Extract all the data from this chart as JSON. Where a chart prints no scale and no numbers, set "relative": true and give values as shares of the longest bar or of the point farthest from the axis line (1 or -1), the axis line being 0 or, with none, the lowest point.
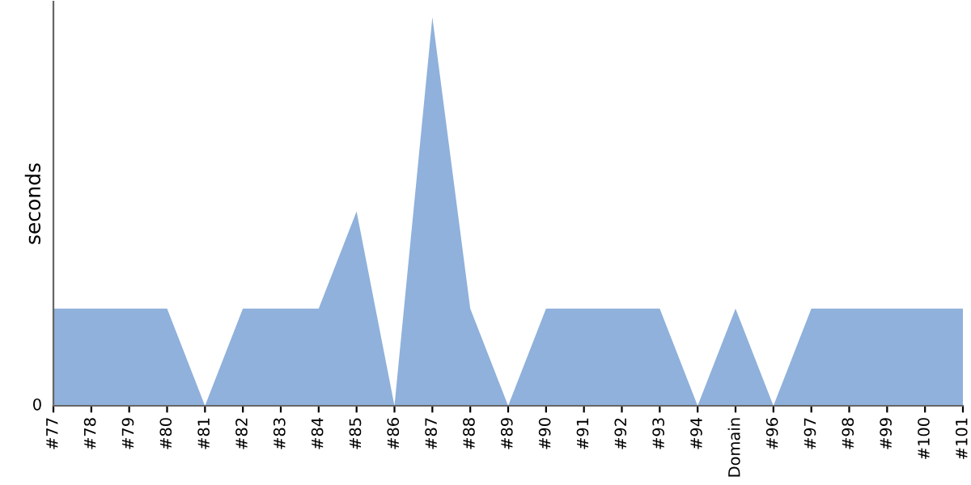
{
  "chart_data": {
    "type": "area",
    "relative": true,
    "ylabel": "seconds",
    "annotations": [
      "0"
    ],
    "categories": [
      "#77",
      "#78",
      "#79",
      "#80",
      "#81",
      "#82",
      "#83",
      "#84",
      "#85",
      "#86",
      "#87",
      "#88",
      "#89",
      "#90",
      "#91",
      "#92",
      "#93",
      "#94",
      "Domain",
      "#96",
      "#97",
      "#98",
      "#99",
      "#100",
      "#101"
    ],
    "series": [
      {
        "color": "#8fb1db",
        "values": [
          0.25,
          0.25,
          0.25,
          0.25,
          0,
          0.25,
          0.25,
          0.25,
          0.5,
          0,
          1,
          0.25,
          0,
          0.25,
          0.25,
          0.25,
          0.25,
          0,
          0.25,
          0,
          0.25,
          0.25,
          0.25,
          0.25,
          0.25
        ]
      }
    ],
    "grid": false,
    "legend": false
  }
}
